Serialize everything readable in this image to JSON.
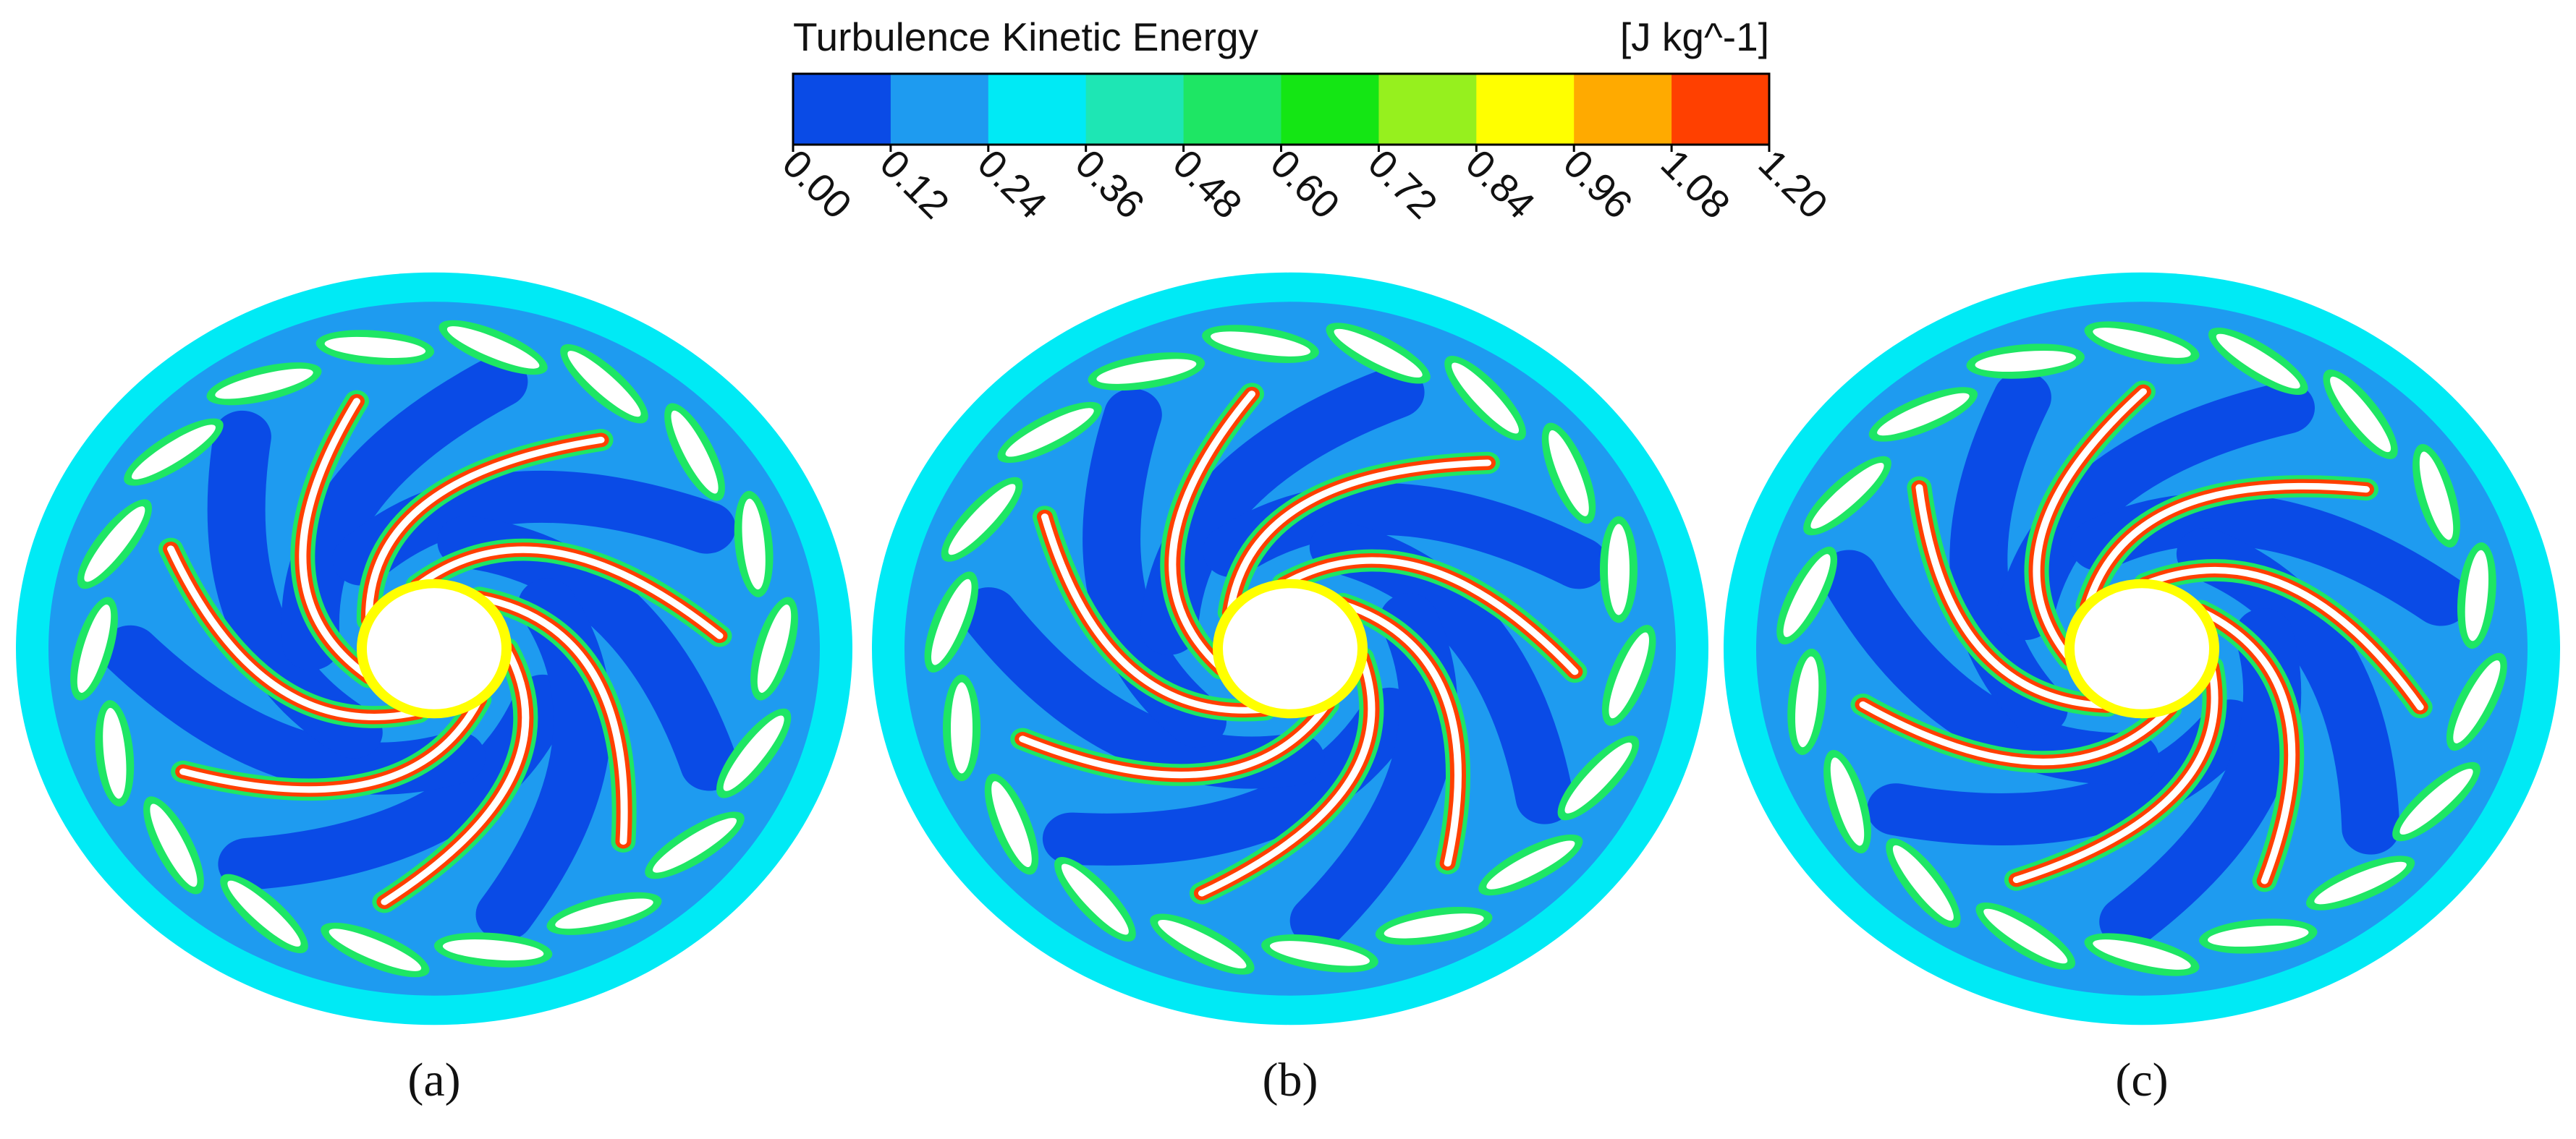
{
  "colorbar": {
    "title": "Turbulence Kinetic Energy",
    "units": "[J kg^-1]",
    "ticks": [
      "0.00",
      "0.12",
      "0.24",
      "0.36",
      "0.48",
      "0.60",
      "0.72",
      "0.84",
      "0.96",
      "1.08",
      "1.20"
    ],
    "colors": [
      "#0a4be6",
      "#1e9bf0",
      "#00eaf5",
      "#1ee6b4",
      "#1ee664",
      "#14e614",
      "#96f01e",
      "#ffff00",
      "#ffaa00",
      "#ff4000"
    ]
  },
  "panels": [
    {
      "label": "(a)"
    },
    {
      "label": "(b)"
    },
    {
      "label": "(c)"
    }
  ]
}
